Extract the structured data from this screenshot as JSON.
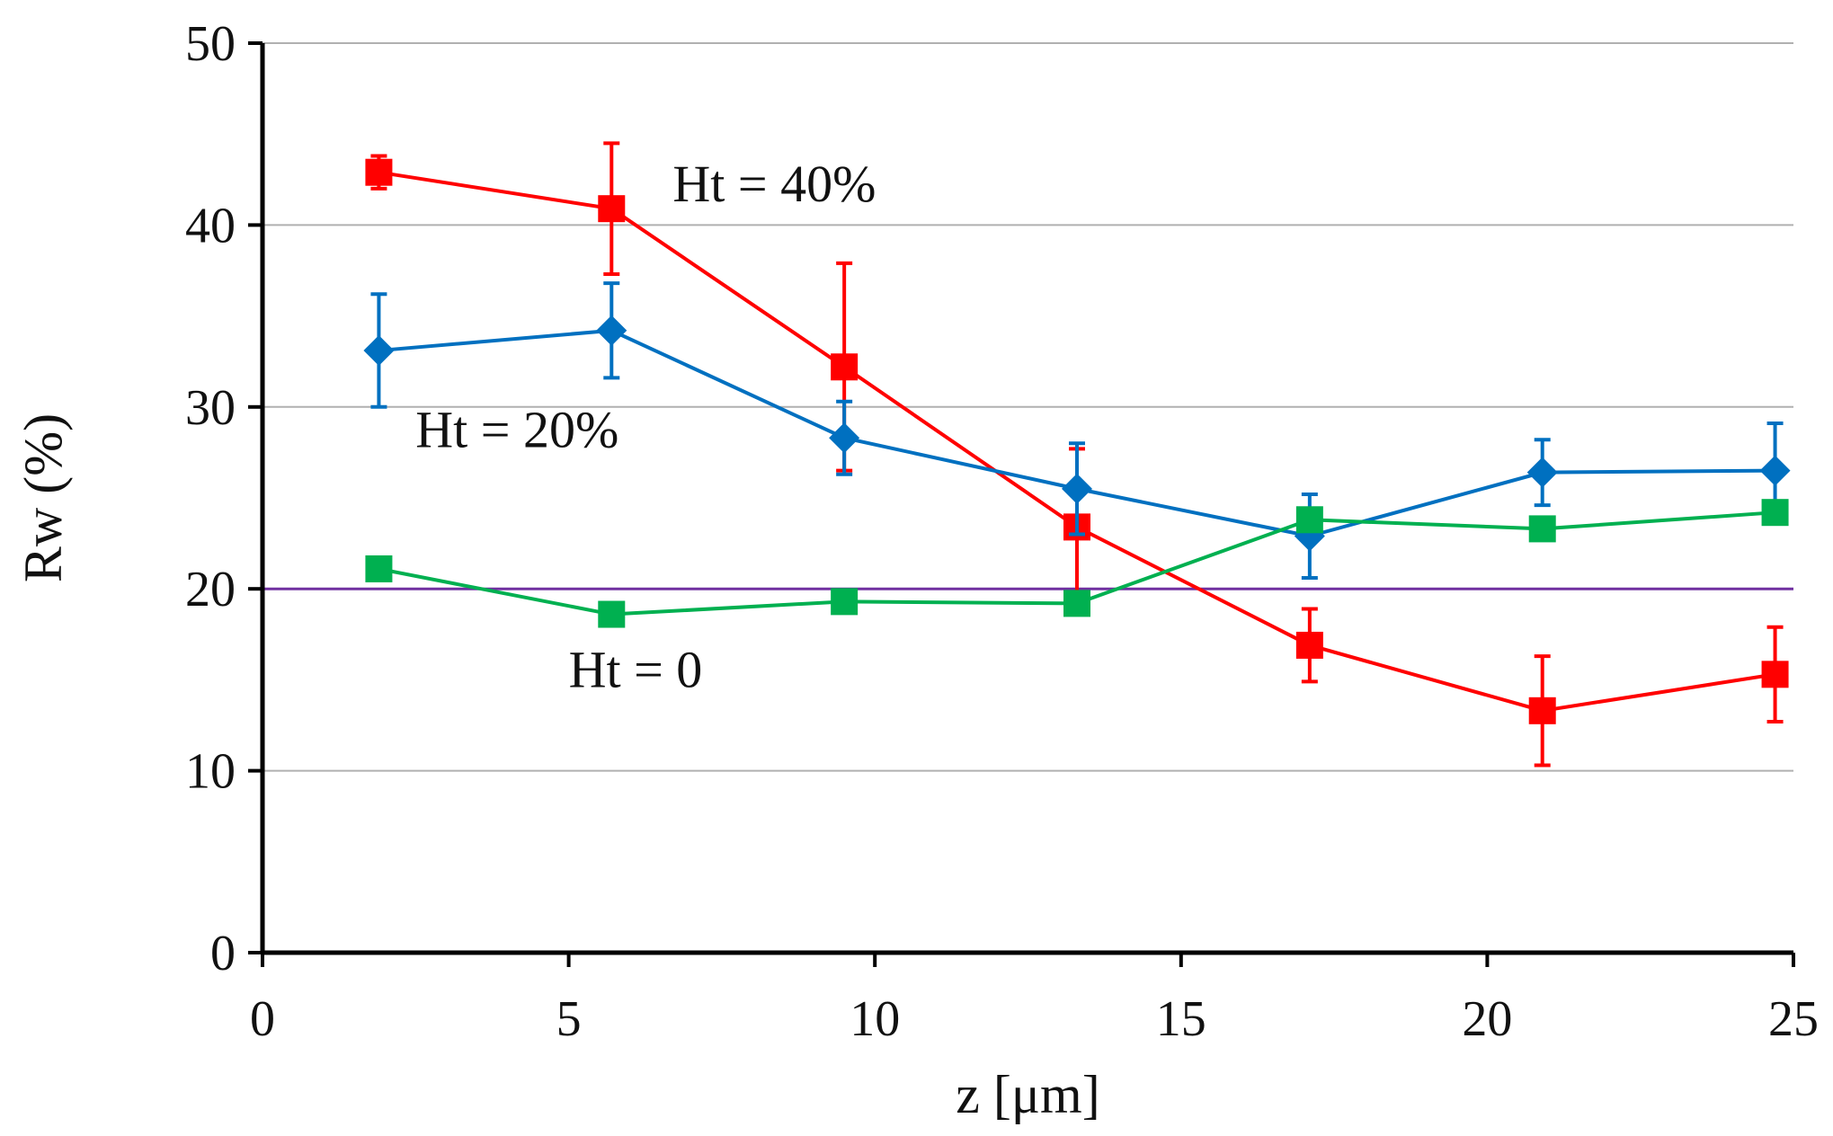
{
  "chart_data": {
    "type": "line",
    "title": "",
    "xlabel": "z [μm]",
    "ylabel": "Rw (%)",
    "xlim": [
      0,
      25
    ],
    "ylim": [
      0,
      50
    ],
    "xticks": [
      0,
      5,
      10,
      15,
      20,
      25
    ],
    "yticks": [
      0,
      10,
      20,
      30,
      40,
      50
    ],
    "xtick_labels": [
      "0",
      "5",
      "10",
      "15",
      "20",
      "25"
    ],
    "ytick_labels": [
      "0",
      "10",
      "20",
      "30",
      "40",
      "50"
    ],
    "grid": "horizontal",
    "reference_line": {
      "y": 20,
      "color": "#7030a0"
    },
    "series": [
      {
        "name": "Ht = 40%",
        "color": "#ff0000",
        "marker": "square",
        "x": [
          1.9,
          5.7,
          9.5,
          13.3,
          17.1,
          20.9,
          24.7
        ],
        "y": [
          42.9,
          40.9,
          32.2,
          23.4,
          16.9,
          13.3,
          15.3
        ],
        "err": [
          0.9,
          3.6,
          5.7,
          4.3,
          2.0,
          3.0,
          2.6
        ]
      },
      {
        "name": "Ht = 20%",
        "color": "#0070c0",
        "marker": "diamond",
        "x": [
          1.9,
          5.7,
          9.5,
          13.3,
          17.1,
          20.9,
          24.7
        ],
        "y": [
          33.1,
          34.2,
          28.3,
          25.5,
          22.9,
          26.4,
          26.5
        ],
        "err": [
          3.1,
          2.6,
          2.0,
          2.5,
          2.3,
          1.8,
          2.6
        ]
      },
      {
        "name": "Ht = 0",
        "color": "#00b050",
        "marker": "square",
        "x": [
          1.9,
          5.7,
          9.5,
          13.3,
          17.1,
          20.9,
          24.7
        ],
        "y": [
          21.1,
          18.6,
          19.3,
          19.2,
          23.8,
          23.3,
          24.2
        ],
        "err": [
          0,
          0,
          0,
          0,
          0,
          0,
          0
        ]
      }
    ],
    "annotations": [
      {
        "text": "Ht = 40%",
        "x": 6.7,
        "y": 41.3
      },
      {
        "text": "Ht = 20%",
        "x": 2.5,
        "y": 27.8
      },
      {
        "text": "Ht = 0",
        "x": 5.0,
        "y": 14.6
      }
    ]
  }
}
